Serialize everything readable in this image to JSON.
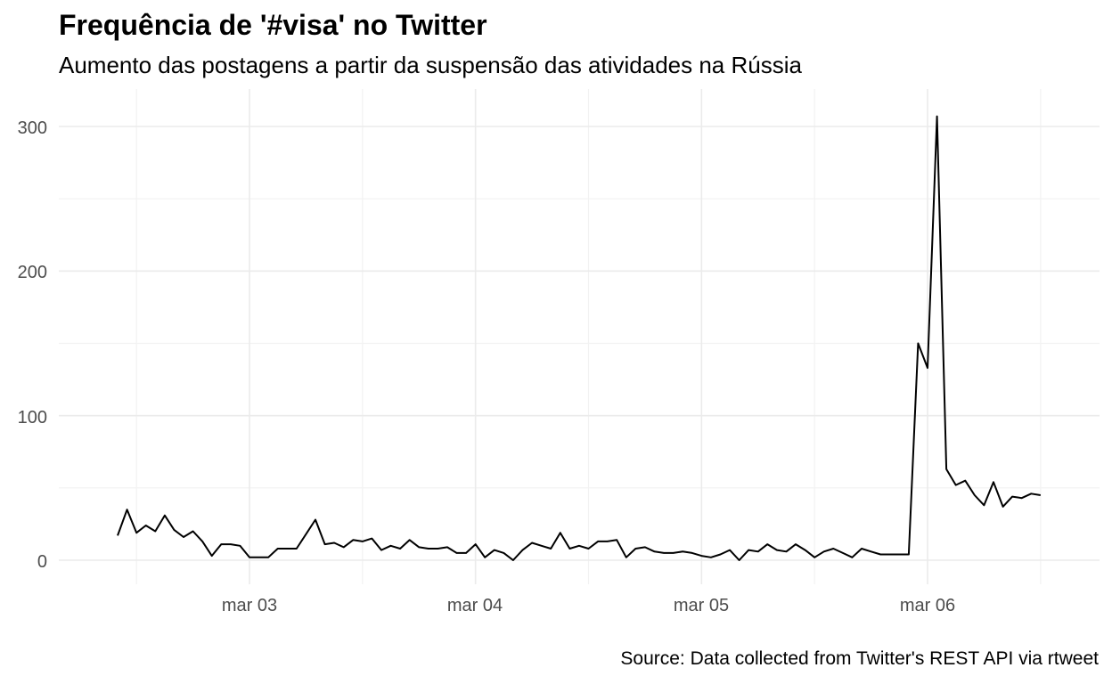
{
  "chart_data": {
    "type": "line",
    "title": "Frequência de '#visa' no Twitter",
    "subtitle": "Aumento das postagens a partir da suspensão das atividades na Rússia",
    "caption": "Source: Data collected from Twitter's REST API via rtweet",
    "xlabel": "",
    "ylabel": "",
    "x_unit": "hour",
    "x_tick_labels": [
      "mar 03",
      "mar 04",
      "mar 05",
      "mar 06"
    ],
    "y_tick_labels": [
      "0",
      "100",
      "200",
      "300"
    ],
    "xlim": [
      "2022-03-02 08:00",
      "2022-03-06 13:00"
    ],
    "ylim": [
      0,
      310
    ],
    "grid": true,
    "line_color": "#000000",
    "series": [
      {
        "x": [
          "2022-03-02 10:00",
          "2022-03-02 11:00",
          "2022-03-02 12:00",
          "2022-03-02 13:00",
          "2022-03-02 14:00",
          "2022-03-02 15:00",
          "2022-03-02 16:00",
          "2022-03-02 17:00",
          "2022-03-02 18:00",
          "2022-03-02 19:00",
          "2022-03-02 20:00",
          "2022-03-02 21:00",
          "2022-03-02 22:00",
          "2022-03-02 23:00",
          "2022-03-03 00:00",
          "2022-03-03 01:00",
          "2022-03-03 02:00",
          "2022-03-03 03:00",
          "2022-03-03 04:00",
          "2022-03-03 05:00",
          "2022-03-03 06:00",
          "2022-03-03 07:00",
          "2022-03-03 08:00",
          "2022-03-03 09:00",
          "2022-03-03 10:00",
          "2022-03-03 11:00",
          "2022-03-03 12:00",
          "2022-03-03 13:00",
          "2022-03-03 14:00",
          "2022-03-03 15:00",
          "2022-03-03 16:00",
          "2022-03-03 17:00",
          "2022-03-03 18:00",
          "2022-03-03 19:00",
          "2022-03-03 20:00",
          "2022-03-03 21:00",
          "2022-03-03 22:00",
          "2022-03-03 23:00",
          "2022-03-04 00:00",
          "2022-03-04 01:00",
          "2022-03-04 02:00",
          "2022-03-04 03:00",
          "2022-03-04 04:00",
          "2022-03-04 05:00",
          "2022-03-04 06:00",
          "2022-03-04 07:00",
          "2022-03-04 08:00",
          "2022-03-04 09:00",
          "2022-03-04 10:00",
          "2022-03-04 11:00",
          "2022-03-04 12:00",
          "2022-03-04 13:00",
          "2022-03-04 14:00",
          "2022-03-04 15:00",
          "2022-03-04 16:00",
          "2022-03-04 17:00",
          "2022-03-04 18:00",
          "2022-03-04 19:00",
          "2022-03-04 20:00",
          "2022-03-04 21:00",
          "2022-03-04 22:00",
          "2022-03-04 23:00",
          "2022-03-05 00:00",
          "2022-03-05 01:00",
          "2022-03-05 02:00",
          "2022-03-05 03:00",
          "2022-03-05 04:00",
          "2022-03-05 05:00",
          "2022-03-05 06:00",
          "2022-03-05 07:00",
          "2022-03-05 08:00",
          "2022-03-05 09:00",
          "2022-03-05 10:00",
          "2022-03-05 11:00",
          "2022-03-05 12:00",
          "2022-03-05 13:00",
          "2022-03-05 14:00",
          "2022-03-05 15:00",
          "2022-03-05 16:00",
          "2022-03-05 17:00",
          "2022-03-05 18:00",
          "2022-03-05 19:00",
          "2022-03-05 20:00",
          "2022-03-05 21:00",
          "2022-03-05 22:00",
          "2022-03-05 23:00",
          "2022-03-06 00:00",
          "2022-03-06 01:00",
          "2022-03-06 02:00",
          "2022-03-06 03:00",
          "2022-03-06 04:00",
          "2022-03-06 05:00",
          "2022-03-06 06:00",
          "2022-03-06 07:00",
          "2022-03-06 08:00",
          "2022-03-06 09:00",
          "2022-03-06 10:00",
          "2022-03-06 11:00",
          "2022-03-06 12:00"
        ],
        "values": [
          17,
          35,
          19,
          24,
          20,
          31,
          21,
          16,
          20,
          13,
          3,
          11,
          11,
          10,
          2,
          2,
          2,
          8,
          8,
          8,
          18,
          28,
          11,
          12,
          9,
          14,
          13,
          15,
          7,
          10,
          8,
          14,
          9,
          8,
          8,
          9,
          5,
          5,
          11,
          2,
          7,
          5,
          0,
          7,
          12,
          10,
          8,
          19,
          8,
          10,
          8,
          13,
          13,
          14,
          2,
          8,
          9,
          6,
          5,
          5,
          6,
          5,
          3,
          2,
          4,
          7,
          0,
          7,
          6,
          11,
          7,
          6,
          11,
          7,
          2,
          6,
          8,
          5,
          2,
          8,
          6,
          4,
          4,
          4,
          4,
          150,
          133,
          307,
          63,
          52,
          55,
          45,
          38,
          54,
          37,
          44,
          43,
          46,
          45
        ]
      }
    ]
  }
}
